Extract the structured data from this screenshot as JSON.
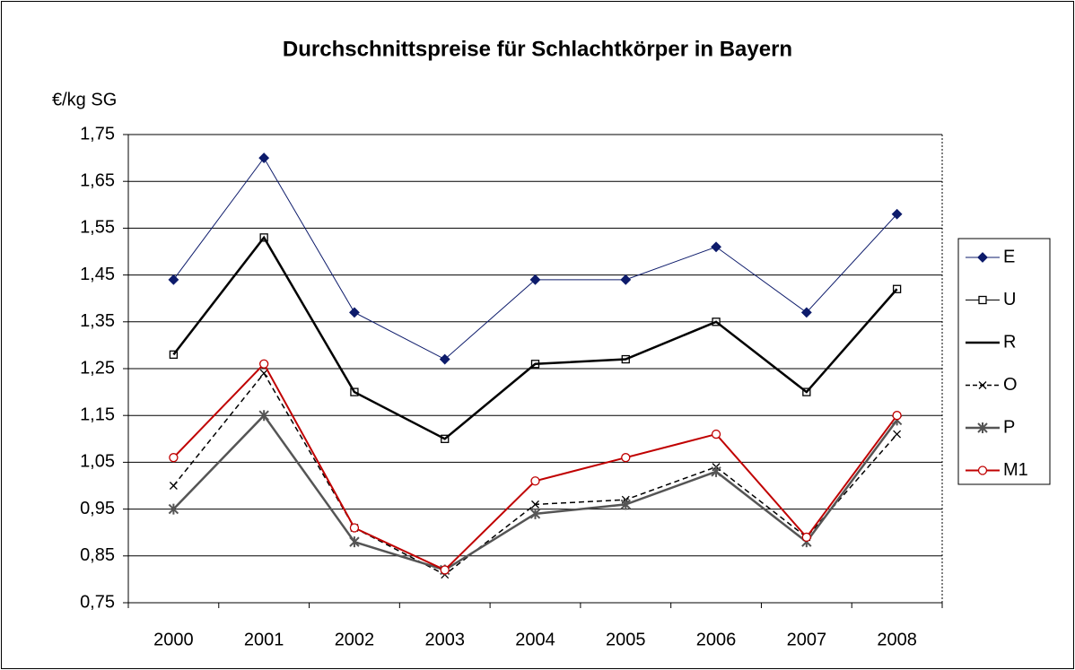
{
  "chart_data": {
    "type": "line",
    "title": "Durchschnittspreise für Schlachtkörper in Bayern",
    "y_axis_label": "€/kg SG",
    "categories": [
      "2000",
      "2001",
      "2002",
      "2003",
      "2004",
      "2005",
      "2006",
      "2007",
      "2008"
    ],
    "ylim": [
      0.75,
      1.75
    ],
    "yticks": [
      {
        "value": 0.75,
        "label": "0,75"
      },
      {
        "value": 0.85,
        "label": "0,85"
      },
      {
        "value": 0.95,
        "label": "0,95"
      },
      {
        "value": 1.05,
        "label": "1,05"
      },
      {
        "value": 1.15,
        "label": "1,15"
      },
      {
        "value": 1.25,
        "label": "1,25"
      },
      {
        "value": 1.35,
        "label": "1,35"
      },
      {
        "value": 1.45,
        "label": "1,45"
      },
      {
        "value": 1.55,
        "label": "1,55"
      },
      {
        "value": 1.65,
        "label": "1,65"
      },
      {
        "value": 1.75,
        "label": "1,75"
      }
    ],
    "grid": true,
    "legend": "right",
    "series": [
      {
        "name": "E",
        "color": "#0d1b6b",
        "marker": "diamond",
        "dash": "solid",
        "width": 1,
        "values": [
          1.44,
          1.7,
          1.37,
          1.27,
          1.44,
          1.44,
          1.51,
          1.37,
          1.58
        ]
      },
      {
        "name": "U",
        "color": "#000000",
        "marker": "square",
        "dash": "solid",
        "width": 1,
        "values": [
          1.28,
          1.53,
          1.2,
          1.1,
          1.26,
          1.27,
          1.35,
          1.2,
          1.42
        ]
      },
      {
        "name": "R",
        "color": "#000000",
        "marker": "none",
        "dash": "solid",
        "width": 2.5,
        "values": [
          1.28,
          1.53,
          1.2,
          1.1,
          1.26,
          1.27,
          1.35,
          1.2,
          1.42
        ]
      },
      {
        "name": "O",
        "color": "#000000",
        "marker": "x",
        "dash": "dashed",
        "width": 1.5,
        "values": [
          1.0,
          1.24,
          0.91,
          0.81,
          0.96,
          0.97,
          1.04,
          0.89,
          1.11
        ]
      },
      {
        "name": "P",
        "color": "#555555",
        "marker": "star",
        "dash": "solid",
        "width": 2.5,
        "values": [
          0.95,
          1.15,
          0.88,
          0.82,
          0.94,
          0.96,
          1.03,
          0.88,
          1.14
        ]
      },
      {
        "name": "M1",
        "color": "#c00000",
        "marker": "circle",
        "dash": "solid",
        "width": 2,
        "values": [
          1.06,
          1.26,
          0.91,
          0.82,
          1.01,
          1.06,
          1.11,
          0.89,
          1.15
        ]
      }
    ]
  }
}
